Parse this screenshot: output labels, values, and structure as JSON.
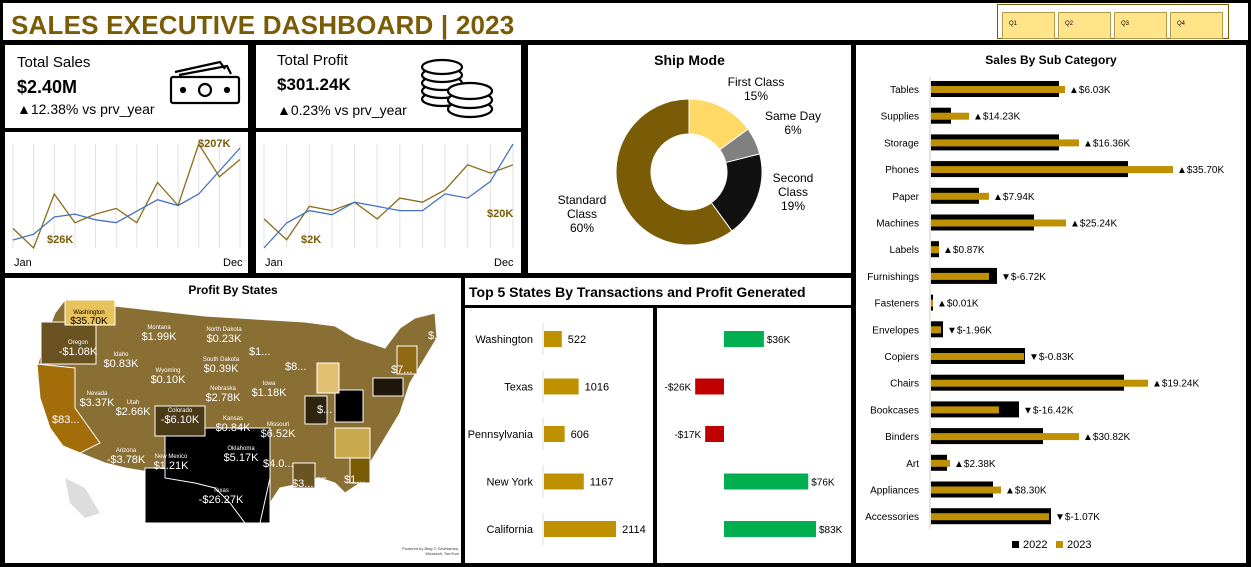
{
  "header": {
    "title": "SALES EXECUTIVE DASHBOARD | 2023",
    "quarters": [
      "Q1",
      "Q2",
      "Q3",
      "Q4"
    ]
  },
  "kpi_sales": {
    "label": "Total Sales",
    "value": "$2.40M",
    "change": "▲12.38% vs prv_year",
    "peak_label": "$207K",
    "low_label": "$26K",
    "start": "Jan",
    "end": "Dec"
  },
  "kpi_profit": {
    "label": "Total Profit",
    "value": "$301.24K",
    "change": "▲0.23% vs prv_year",
    "peak_label": "$20K",
    "low_label": "$2K",
    "start": "Jan",
    "end": "Dec"
  },
  "ship_mode": {
    "title": "Ship Mode",
    "segments": [
      {
        "name": "First Class",
        "value": 15,
        "label": "15%",
        "color": "#ffd966"
      },
      {
        "name": "Same Day",
        "value": 6,
        "label": "6%",
        "color": "#808080"
      },
      {
        "name": "Second Class",
        "value": 19,
        "label": "19%",
        "color": "#111111"
      },
      {
        "name": "Standard Class",
        "value": 60,
        "label": "60%",
        "color": "#7a5b06"
      }
    ]
  },
  "map": {
    "title": "Profit  By States",
    "credits": "Powered by Bing © GeoNames, Microsoft, TomTom",
    "labels": [
      "Washington",
      "$35.70K",
      "Oregon",
      "-$1.08K",
      "Montana",
      "$1.99K",
      "North Dakota",
      "$0.23K",
      "Idaho",
      "$0.83K",
      "South Dakota",
      "$0.39K",
      "Wyoming",
      "$0.10K",
      "Nevada",
      "$3.37K",
      "Utah",
      "$2.66K",
      "Colorado",
      "-$6.10K",
      "Nebraska",
      "$2.78K",
      "Kansas",
      "$0.84K",
      "Iowa",
      "$1.18K",
      "Missouri",
      "$6.52K",
      "Arizona",
      "-$3.78K",
      "New Mexico",
      "$1.21K",
      "Oklahoma",
      "$5.17K",
      "Texas",
      "-$26.27K",
      "$83...",
      "$1...",
      "$8...",
      "$...",
      "$4.0...",
      "$3...",
      "$5...",
      "$1...",
      "$7...",
      "$..."
    ]
  },
  "top5": {
    "title": "Top 5 States By Transactions and Profit Generated",
    "states": [
      "Washington",
      "Texas",
      "Pennsylvania",
      "New York",
      "California"
    ],
    "transactions": [
      522,
      1016,
      606,
      1167,
      2114
    ],
    "profit": [
      36,
      -26,
      -17,
      76,
      83
    ],
    "profit_labels": [
      "$36K",
      "-$26K",
      "-$17K",
      "$76K",
      "$83K"
    ]
  },
  "subcat": {
    "title": "Sales By Sub Category",
    "legend": [
      "2022",
      "2023"
    ],
    "colors": {
      "y2022": "#000000",
      "y2023": "#bf9000",
      "up": "#000",
      "down": "#000"
    },
    "rows": [
      {
        "name": "Tables",
        "v2022": 128,
        "v2023": 134,
        "change": "▲$6.03K"
      },
      {
        "name": "Supplies",
        "v2022": 20,
        "v2023": 38,
        "change": "▲$14.23K"
      },
      {
        "name": "Storage",
        "v2022": 128,
        "v2023": 148,
        "change": "▲$16.36K"
      },
      {
        "name": "Phones",
        "v2022": 197,
        "v2023": 242,
        "change": "▲$35.70K"
      },
      {
        "name": "Paper",
        "v2022": 48,
        "v2023": 58,
        "change": "▲$7.94K"
      },
      {
        "name": "Machines",
        "v2022": 103,
        "v2023": 135,
        "change": "▲$25.24K"
      },
      {
        "name": "Labels",
        "v2022": 8,
        "v2023": 8,
        "change": "▲$0.87K"
      },
      {
        "name": "Furnishings",
        "v2022": 66,
        "v2023": 58,
        "change": "▼$-6.72K"
      },
      {
        "name": "Fasteners",
        "v2022": 2,
        "v2023": 2,
        "change": "▲$0.01K"
      },
      {
        "name": "Envelopes",
        "v2022": 12,
        "v2023": 10,
        "change": "▼$-1.96K"
      },
      {
        "name": "Copiers",
        "v2022": 94,
        "v2023": 93,
        "change": "▼$-0.83K"
      },
      {
        "name": "Chairs",
        "v2022": 193,
        "v2023": 217,
        "change": "▲$19.24K"
      },
      {
        "name": "Bookcases",
        "v2022": 88,
        "v2023": 68,
        "change": "▼$-16.42K"
      },
      {
        "name": "Binders",
        "v2022": 112,
        "v2023": 148,
        "change": "▲$30.82K"
      },
      {
        "name": "Art",
        "v2022": 16,
        "v2023": 19,
        "change": "▲$2.38K"
      },
      {
        "name": "Appliances",
        "v2022": 62,
        "v2023": 70,
        "change": "▲$8.30K"
      },
      {
        "name": "Accessories",
        "v2022": 120,
        "v2023": 118,
        "change": "▼$-1.07K"
      }
    ]
  },
  "chart_data": [
    {
      "type": "line",
      "title": "",
      "x": [
        "Jan",
        "Feb",
        "Mar",
        "Apr",
        "May",
        "Jun",
        "Jul",
        "Aug",
        "Sep",
        "Oct",
        "Nov",
        "Dec"
      ],
      "series": [
        {
          "values": [
            60,
            26,
            120,
            70,
            85,
            95,
            70,
            140,
            100,
            207,
            150,
            180
          ]
        },
        {
          "values": [
            40,
            50,
            80,
            85,
            75,
            70,
            90,
            110,
            100,
            120,
            160,
            200
          ]
        }
      ]
    },
    {
      "type": "line",
      "title": "",
      "x": [
        "Jan",
        "Feb",
        "Mar",
        "Apr",
        "May",
        "Jun",
        "Jul",
        "Aug",
        "Sep",
        "Oct",
        "Nov",
        "Dec"
      ],
      "series": [
        {
          "values": [
            7,
            2,
            10,
            9,
            11,
            7,
            12,
            11,
            14,
            20,
            18,
            20
          ]
        },
        {
          "values": [
            0,
            6,
            9,
            8,
            11,
            10,
            9,
            9,
            13,
            12,
            16,
            25
          ]
        }
      ]
    }
  ]
}
